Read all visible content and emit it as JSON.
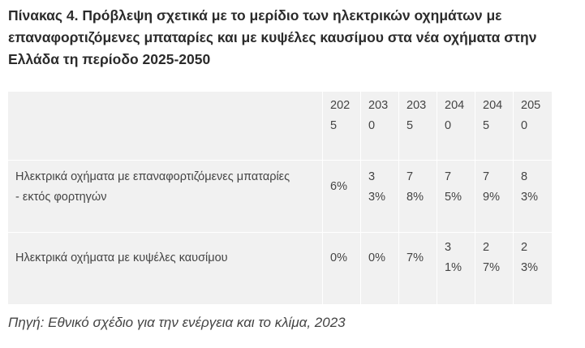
{
  "title": "Πίνακας 4. Πρόβλεψη σχετικά με το μερίδιο των ηλεκτρικών οχημάτων με επαναφορτιζόμενες μπαταρίες και με κυψέλες καυσίμου στα νέα οχήματα στην Ελλάδα τη περίοδο 2025-2050",
  "table": {
    "years": [
      "2025",
      "2030",
      "2035",
      "2040",
      "2045",
      "2050"
    ],
    "rows": [
      {
        "label": "Ηλεκτρικά οχήματα με επαναφορτιζόμενες μπαταρίες - εκτός φορτηγών",
        "values": [
          "6%",
          "33%",
          "78%",
          "75%",
          "79%",
          "83%"
        ]
      },
      {
        "label": "Ηλεκτρικά οχήματα με κυψέλες καυσίμου",
        "values": [
          "0%",
          "0%",
          "7%",
          "31%",
          "27%",
          "23%"
        ]
      }
    ]
  },
  "source": "Πηγή: Εθνικό σχέδιο για την ενέργεια και το κλίμα, 2023"
}
